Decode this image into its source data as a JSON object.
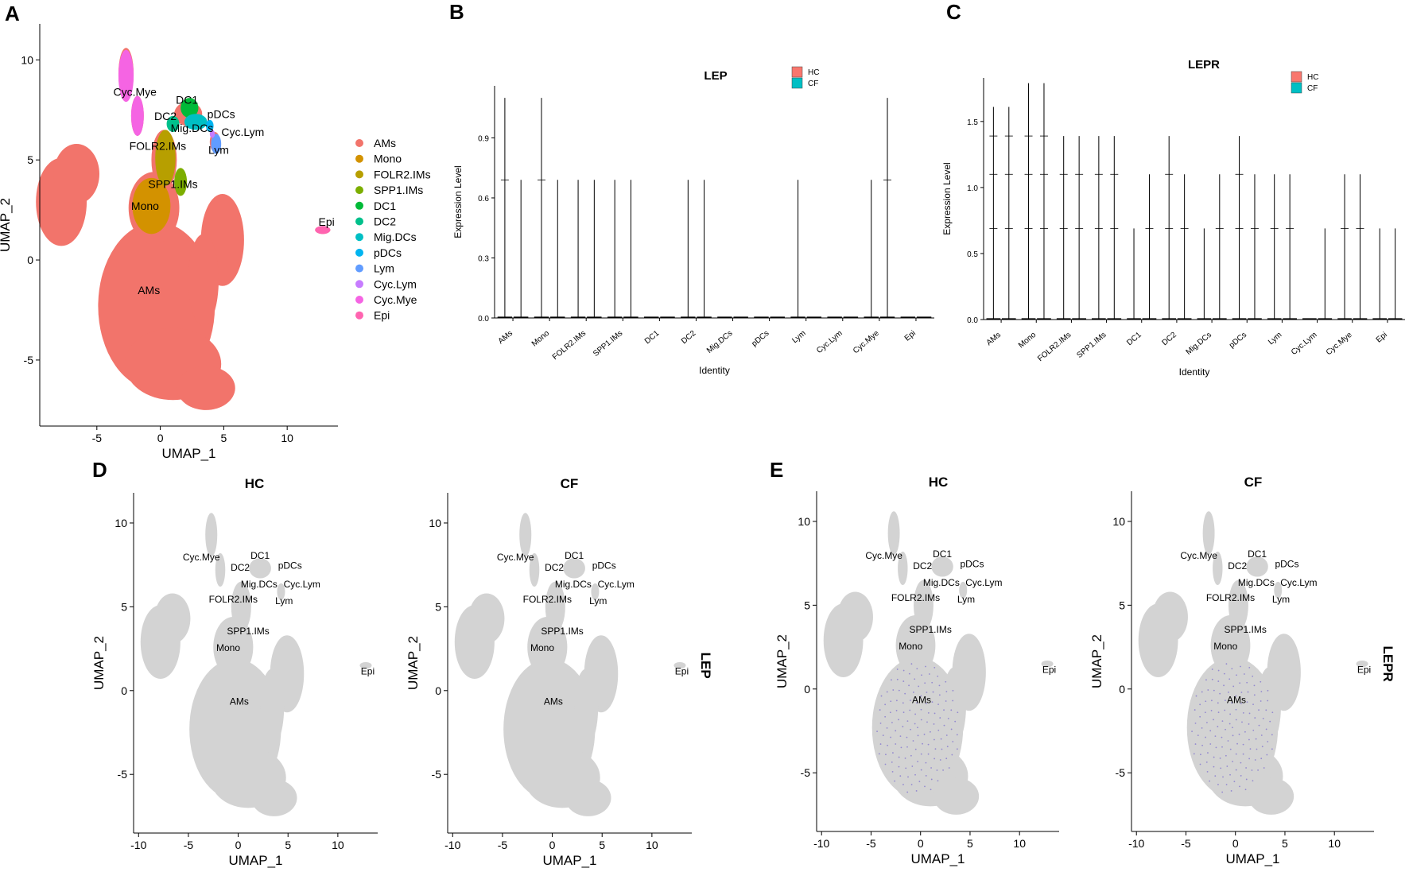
{
  "figure": {
    "panel_letters": [
      "A",
      "B",
      "C",
      "D",
      "E"
    ]
  },
  "chart_data": [
    {
      "id": "A",
      "type": "scatter",
      "title": "",
      "xlabel": "UMAP_1",
      "ylabel": "UMAP_2",
      "xticks": [
        -5,
        0,
        5,
        10
      ],
      "yticks": [
        -5,
        0,
        5,
        10
      ],
      "xlim": [
        -9.5,
        14
      ],
      "ylim": [
        -8.3,
        11.8
      ],
      "legend_position": "right",
      "clusters": [
        {
          "name": "AMs",
          "color": "#F2746B",
          "x": -0.5,
          "y": -1.5
        },
        {
          "name": "Mono",
          "color": "#D39200",
          "x": -0.8,
          "y": 2.7
        },
        {
          "name": "FOLR2.IMs",
          "color": "#B79F00",
          "x": -0.4,
          "y": 5.7
        },
        {
          "name": "SPP1.IMs",
          "color": "#7CAE00",
          "x": 1.2,
          "y": 3.7
        },
        {
          "name": "DC1",
          "color": "#00BA38",
          "x": 2.2,
          "y": 7.8
        },
        {
          "name": "DC2",
          "color": "#00C08B",
          "x": 0.4,
          "y": 7.2
        },
        {
          "name": "Mig.DCs",
          "color": "#00BFC4",
          "x": 2.5,
          "y": 6.5
        },
        {
          "name": "pDCs",
          "color": "#00B4F0",
          "x": 4.8,
          "y": 7.3
        },
        {
          "name": "Lym",
          "color": "#619CFF",
          "x": 4.6,
          "y": 5.5
        },
        {
          "name": "Cyc.Lym",
          "color": "#C77CFF",
          "x": 6.3,
          "y": 6.4
        },
        {
          "name": "Cyc.Mye",
          "color": "#F564E3",
          "x": -1.9,
          "y": 8.3
        },
        {
          "name": "Epi",
          "color": "#FF64B0",
          "x": 12.9,
          "y": 1.7
        }
      ]
    },
    {
      "id": "B",
      "type": "violin",
      "title": "LEP",
      "xlabel": "Identity",
      "ylabel": "Expression Level",
      "ylim": [
        0,
        1.16
      ],
      "yticks": [
        0.0,
        0.3,
        0.6,
        0.9
      ],
      "ytick_labels": [
        "0.0",
        "0.3",
        "0.6",
        "0.9"
      ],
      "categories": [
        "AMs",
        "Mono",
        "FOLR2.IMs",
        "SPP1.IMs",
        "DC1",
        "DC2",
        "Mig.DCs",
        "pDCs",
        "Lym",
        "Cyc.Lym",
        "Cyc.Mye",
        "Epi"
      ],
      "legend": [
        {
          "name": "HC",
          "color": "#F8766D"
        },
        {
          "name": "CF",
          "color": "#00BFC4"
        }
      ],
      "series": [
        {
          "name": "HC",
          "max": [
            1.1,
            1.1,
            0.69,
            0.69,
            0.0,
            0.69,
            0.0,
            0.0,
            0.69,
            0.0,
            0.69,
            0.0
          ]
        },
        {
          "name": "CF",
          "max": [
            0.69,
            0.69,
            0.69,
            0.69,
            0.0,
            0.69,
            0.0,
            0.0,
            0.0,
            0.0,
            1.1,
            0.0
          ]
        }
      ]
    },
    {
      "id": "C",
      "type": "violin",
      "title": "LEPR",
      "xlabel": "Identity",
      "ylabel": "Expression Level",
      "ylim": [
        0,
        1.83
      ],
      "yticks": [
        0.0,
        0.5,
        1.0,
        1.5
      ],
      "ytick_labels": [
        "0.0",
        "0.5",
        "1.0",
        "1.5"
      ],
      "categories": [
        "AMs",
        "Mono",
        "FOLR2.IMs",
        "SPP1.IMs",
        "DC1",
        "DC2",
        "Mig.DCs",
        "pDCs",
        "Lym",
        "Cyc.Lym",
        "Cyc.Mye",
        "Epi"
      ],
      "legend": [
        {
          "name": "HC",
          "color": "#F8766D"
        },
        {
          "name": "CF",
          "color": "#00BFC4"
        }
      ],
      "series": [
        {
          "name": "HC",
          "max": [
            1.61,
            1.79,
            1.39,
            1.39,
            0.69,
            1.39,
            0.69,
            1.39,
            1.1,
            0.0,
            1.1,
            0.69
          ]
        },
        {
          "name": "CF",
          "max": [
            1.61,
            1.79,
            1.39,
            1.39,
            1.1,
            1.1,
            1.1,
            1.1,
            1.1,
            0.69,
            1.1,
            0.69
          ]
        }
      ]
    },
    {
      "id": "D",
      "type": "scatter",
      "feature": "LEP",
      "xlabel": "UMAP_1",
      "ylabel": "UMAP_2",
      "xticks": [
        -10,
        -5,
        0,
        5,
        10
      ],
      "yticks": [
        -5,
        0,
        5,
        10
      ],
      "xlim": [
        -10.5,
        14
      ],
      "ylim": [
        -8.5,
        11.8
      ],
      "facets": [
        {
          "title": "HC"
        },
        {
          "title": "CF"
        }
      ]
    },
    {
      "id": "E",
      "type": "scatter",
      "feature": "LEPR",
      "xlabel": "UMAP_1",
      "ylabel": "UMAP_2",
      "xticks": [
        -10,
        -5,
        0,
        5,
        10
      ],
      "yticks": [
        -5,
        0,
        5,
        10
      ],
      "xlim": [
        -10.5,
        14
      ],
      "ylim": [
        -8.5,
        11.8
      ],
      "facets": [
        {
          "title": "HC"
        },
        {
          "title": "CF"
        }
      ]
    }
  ]
}
